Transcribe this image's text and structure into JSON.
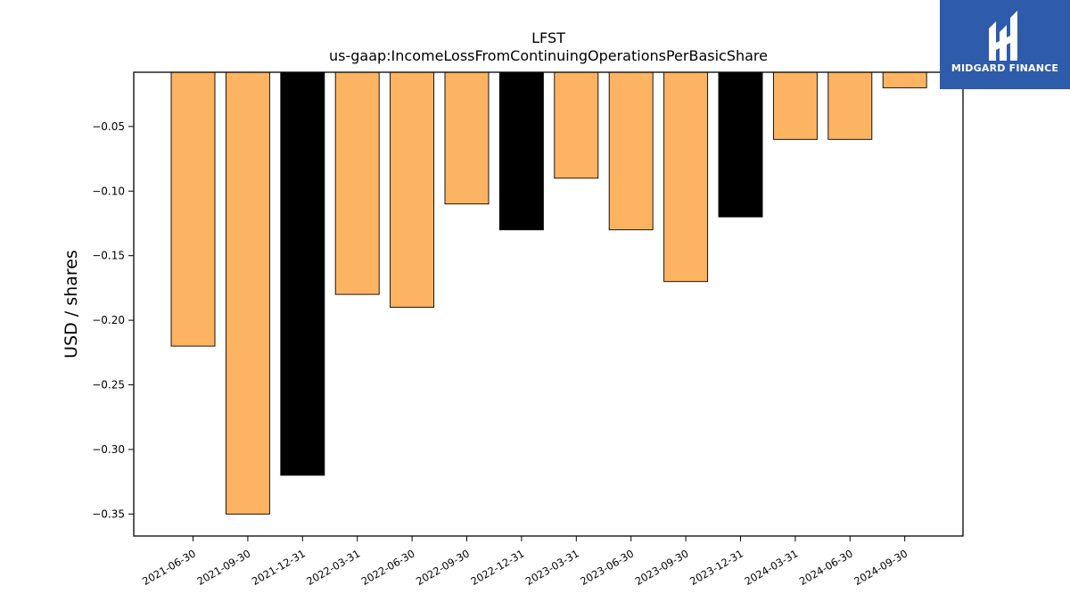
{
  "chart_data": {
    "type": "bar",
    "title": "LFST",
    "subtitle": "us-gaap:IncomeLossFromContinuingOperationsPerBasicShare",
    "xlabel": "",
    "ylabel": "USD / shares",
    "ylim": [
      -0.367,
      -0.008
    ],
    "yticks": [
      -0.05,
      -0.1,
      -0.15,
      -0.2,
      -0.25,
      -0.3,
      -0.35
    ],
    "ytick_labels": [
      "−0.05",
      "−0.10",
      "−0.15",
      "−0.20",
      "−0.25",
      "−0.30",
      "−0.35"
    ],
    "grid": false,
    "categories": [
      "2021-06-30",
      "2021-09-30",
      "2021-12-31",
      "2022-03-31",
      "2022-06-30",
      "2022-09-30",
      "2022-12-31",
      "2023-03-31",
      "2023-06-30",
      "2023-09-30",
      "2023-12-31",
      "2024-03-31",
      "2024-06-30",
      "2024-09-30"
    ],
    "values": [
      -0.22,
      -0.35,
      -0.32,
      -0.18,
      -0.19,
      -0.11,
      -0.13,
      -0.09,
      -0.13,
      -0.17,
      -0.12,
      -0.06,
      -0.06,
      -0.02
    ],
    "bar_colors": [
      "#fdb462",
      "#fdb462",
      "#000000",
      "#fdb462",
      "#fdb462",
      "#fdb462",
      "#000000",
      "#fdb462",
      "#fdb462",
      "#fdb462",
      "#000000",
      "#fdb462",
      "#fdb462",
      "#fdb462"
    ]
  },
  "logo": {
    "text": "MIDGARD FINANCE",
    "background": "#2f5bab"
  }
}
